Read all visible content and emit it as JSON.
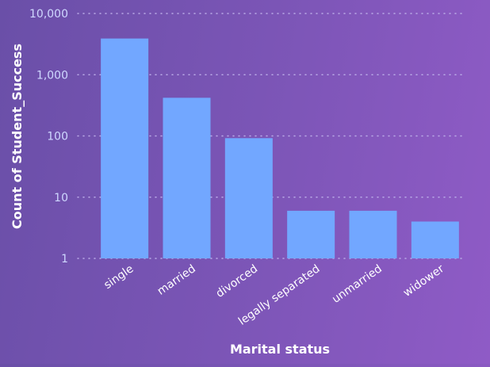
{
  "chart_data": {
    "type": "bar",
    "title": "",
    "xlabel": "Marital status",
    "ylabel": "Count of Student_Success",
    "y_scale": "log",
    "ylim": [
      1,
      10000
    ],
    "y_ticks": [
      "1",
      "10",
      "100",
      "1,000",
      "10,000"
    ],
    "grid": true,
    "categories": [
      "single",
      "married",
      "divorced",
      "legally separated",
      "unmarried",
      "widower"
    ],
    "values": [
      3900,
      420,
      92,
      6,
      6,
      4
    ]
  },
  "colors": {
    "bar": "#72a7ff",
    "grid": "#b9a9e6",
    "tick_label": "#cfd8ff",
    "axis_title": "#ffffff"
  }
}
